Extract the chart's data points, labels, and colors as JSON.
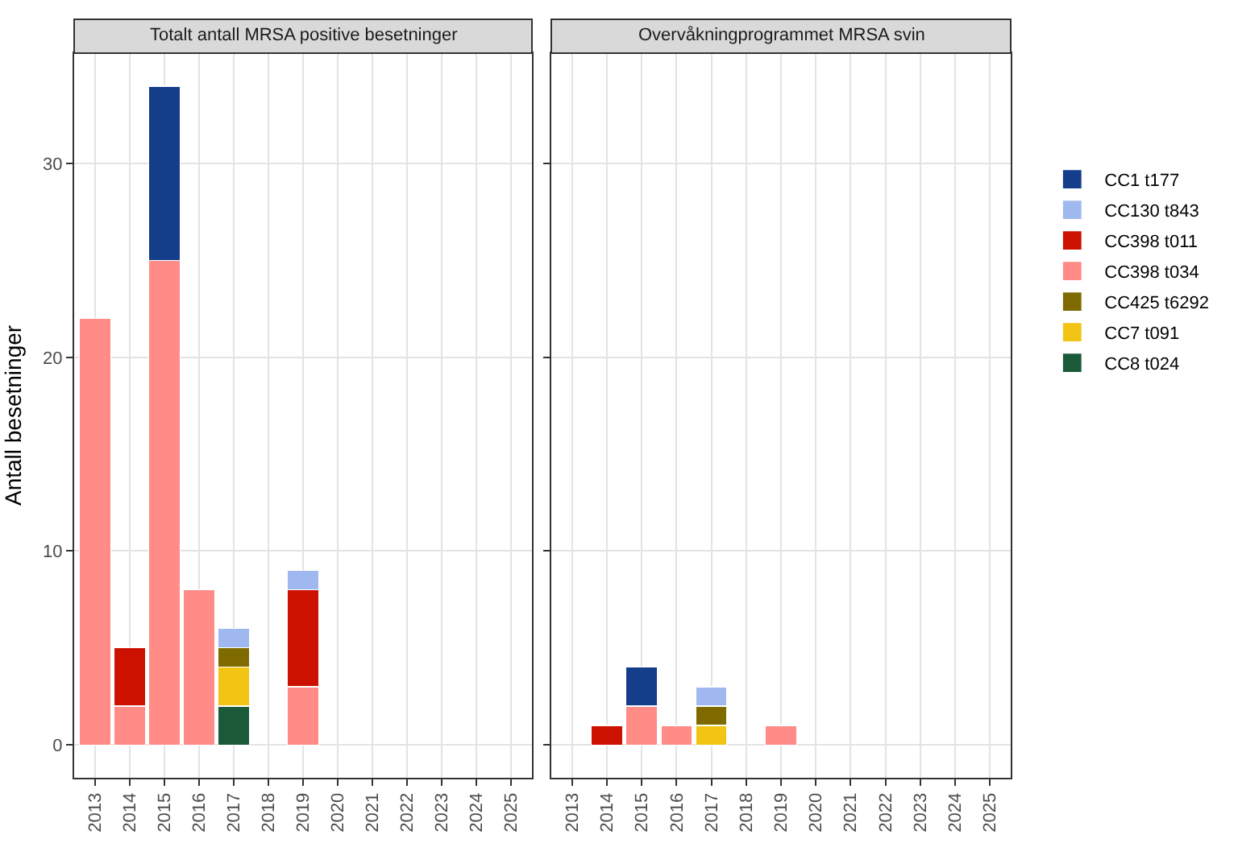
{
  "chart_data": [
    {
      "type": "bar",
      "title": "Totalt antall MRSA positive besetninger",
      "ylabel": "Antall besetninger",
      "stacked": true,
      "categories": [
        "2013",
        "2014",
        "2015",
        "2016",
        "2017",
        "2018",
        "2019",
        "2020",
        "2021",
        "2022",
        "2023",
        "2024",
        "2025"
      ],
      "ylim": [
        -1.7,
        35.7
      ],
      "yticks": [
        0,
        10,
        20,
        30
      ],
      "grid": true,
      "legend": "right",
      "series": [
        {
          "name": "CC8 t024",
          "color": "#1b5a38",
          "values": [
            null,
            null,
            null,
            null,
            2,
            null,
            null,
            null,
            null,
            null,
            null,
            null,
            null
          ]
        },
        {
          "name": "CC7 t091",
          "color": "#f2c514",
          "values": [
            null,
            null,
            null,
            null,
            2,
            null,
            null,
            null,
            null,
            null,
            null,
            null,
            null
          ]
        },
        {
          "name": "CC425 t6292",
          "color": "#7f6a00",
          "values": [
            null,
            null,
            null,
            null,
            1,
            null,
            null,
            null,
            null,
            null,
            null,
            null,
            null
          ]
        },
        {
          "name": "CC398 t034",
          "color": "#ff8c87",
          "values": [
            22,
            2,
            25,
            8,
            null,
            null,
            3,
            null,
            null,
            null,
            null,
            null,
            null
          ]
        },
        {
          "name": "CC398 t011",
          "color": "#cc1100",
          "values": [
            null,
            3,
            null,
            null,
            null,
            null,
            5,
            null,
            null,
            null,
            null,
            null,
            null
          ]
        },
        {
          "name": "CC130 t843",
          "color": "#a0b8f0",
          "values": [
            null,
            null,
            null,
            null,
            1,
            null,
            1,
            null,
            null,
            null,
            null,
            null,
            null
          ]
        },
        {
          "name": "CC1 t177",
          "color": "#143d8a",
          "values": [
            null,
            null,
            9,
            null,
            null,
            null,
            null,
            null,
            null,
            null,
            null,
            null,
            null
          ]
        }
      ]
    },
    {
      "type": "bar",
      "title": "Overvåkningprogrammet MRSA svin",
      "stacked": true,
      "categories": [
        "2013",
        "2014",
        "2015",
        "2016",
        "2017",
        "2018",
        "2019",
        "2020",
        "2021",
        "2022",
        "2023",
        "2024",
        "2025"
      ],
      "ylim": [
        -1.7,
        35.7
      ],
      "yticks": [
        0,
        10,
        20,
        30
      ],
      "grid": true,
      "tick_labels": "x",
      "series": [
        {
          "color": "#f2c514",
          "values": [
            null,
            null,
            null,
            null,
            1,
            null,
            null,
            null,
            null,
            null,
            null,
            null,
            null
          ]
        },
        {
          "color": "#7f6a00",
          "values": [
            null,
            null,
            null,
            null,
            1,
            null,
            null,
            null,
            null,
            null,
            null,
            null,
            null
          ]
        },
        {
          "color": "#ff8c87",
          "values": [
            null,
            null,
            2,
            1,
            null,
            null,
            1,
            null,
            null,
            null,
            null,
            null,
            null
          ]
        },
        {
          "color": "#cc1100",
          "values": [
            null,
            1,
            null,
            null,
            null,
            null,
            null,
            null,
            null,
            null,
            null,
            null,
            null
          ]
        },
        {
          "color": "#a0b8f0",
          "values": [
            null,
            null,
            null,
            null,
            1,
            null,
            null,
            null,
            null,
            null,
            null,
            null,
            null
          ]
        },
        {
          "color": "#143d8a",
          "values": [
            null,
            null,
            2,
            null,
            null,
            null,
            null,
            null,
            null,
            null,
            null,
            null,
            null
          ]
        }
      ]
    }
  ]
}
